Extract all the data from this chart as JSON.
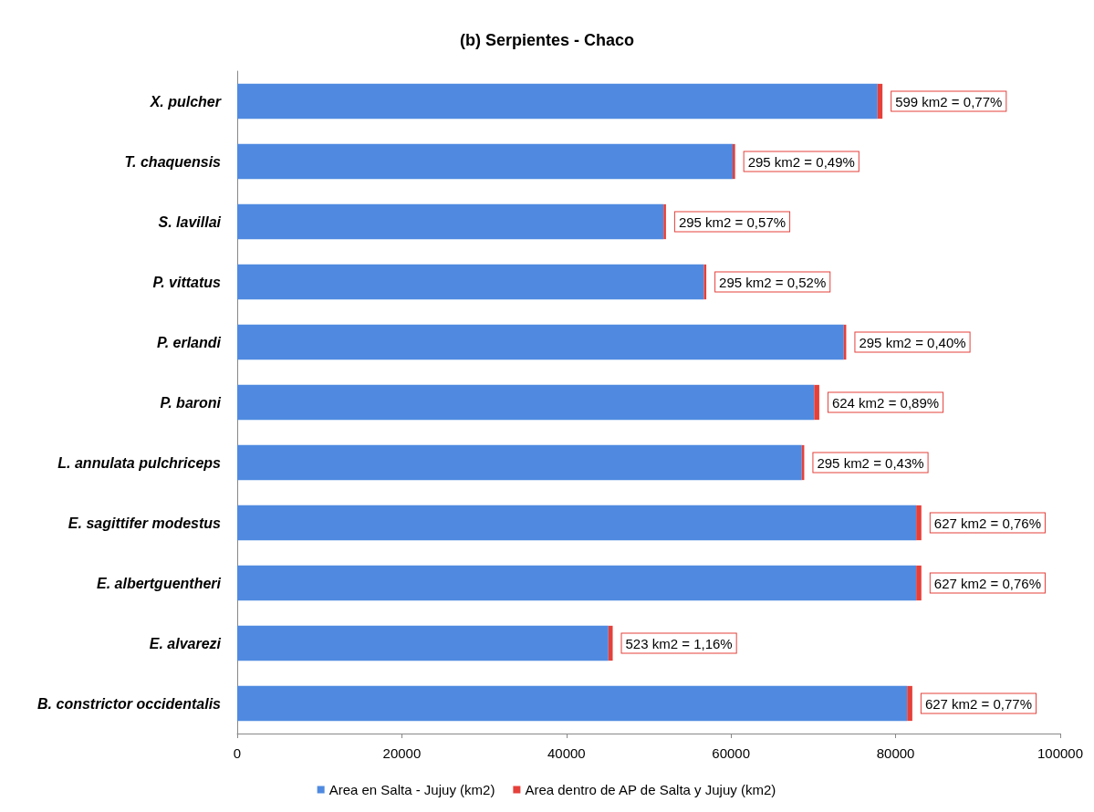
{
  "chart_data": {
    "type": "bar",
    "title": "(b) Serpientes - Chaco",
    "orientation": "horizontal",
    "stacked": true,
    "categories": [
      "X. pulcher",
      "T. chaquensis",
      "S. lavillai",
      "P. vittatus",
      "P. erlandi",
      "P. baroni",
      "L. annulata pulchriceps",
      "E. sagittifer modestus",
      "E. albertguentheri",
      "E. alvarezi",
      "B. constrictor occidentalis"
    ],
    "series": [
      {
        "name": "Area en Salta - Jujuy (km2)",
        "color": "#4f8ae0",
        "values": [
          77800,
          60200,
          51800,
          56700,
          73700,
          70100,
          68600,
          82500,
          82500,
          45100,
          81400
        ]
      },
      {
        "name": "Area dentro de AP de Salta y Jujuy (km2)",
        "color": "#e5403a",
        "values": [
          599,
          295,
          295,
          295,
          295,
          624,
          295,
          627,
          627,
          523,
          627
        ],
        "value_labels": [
          "599 km2 = 0,77%",
          "295 km2 = 0,49%",
          "295 km2 = 0,57%",
          "295 km2 = 0,52%",
          "295 km2 = 0,40%",
          "624 km2 = 0,89%",
          "295 km2 = 0,43%",
          "627 km2 = 0,76%",
          "627 km2 = 0,76%",
          "523 km2 = 1,16%",
          "627 km2 = 0,77%"
        ]
      }
    ],
    "xlim": [
      0,
      100000
    ],
    "xticks": [
      0,
      20000,
      40000,
      60000,
      80000,
      100000
    ],
    "grid": false,
    "legend": "bottom"
  }
}
